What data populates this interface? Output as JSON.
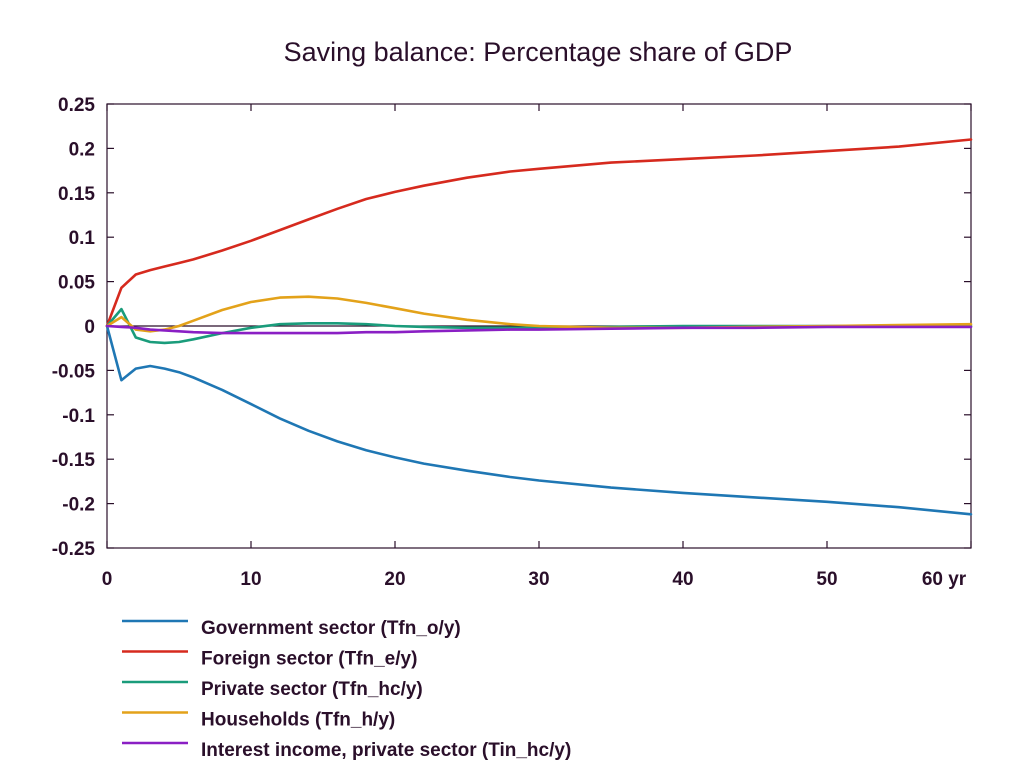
{
  "chart_data": {
    "type": "line",
    "title": "Saving balance: Percentage share of GDP",
    "x_unit": "yr",
    "xlim": [
      0,
      60
    ],
    "ylim": [
      -0.25,
      0.25
    ],
    "x_ticks": [
      0,
      10,
      20,
      30,
      40,
      50,
      60
    ],
    "x_tick_labels": [
      "0",
      "10",
      "20",
      "30",
      "40",
      "50",
      "60 yr"
    ],
    "y_ticks": [
      0.25,
      0.2,
      0.15,
      0.1,
      0.05,
      0,
      -0.05,
      -0.1,
      -0.15,
      -0.2,
      -0.25
    ],
    "y_tick_labels": [
      "0.25",
      "0.2",
      "0.15",
      "0.1",
      "0.05",
      "0",
      "-0.05",
      "-0.1",
      "-0.15",
      "-0.2",
      "-0.25"
    ],
    "grid": false,
    "legend_position": "bottom",
    "x": [
      0,
      1,
      2,
      3,
      4,
      5,
      6,
      8,
      10,
      12,
      14,
      16,
      18,
      20,
      22,
      25,
      28,
      30,
      35,
      40,
      45,
      50,
      55,
      60
    ],
    "series": [
      {
        "name": "Government sector (Tfn_o/y)",
        "color": "#1f77b4",
        "values": [
          0,
          -0.061,
          -0.048,
          -0.045,
          -0.048,
          -0.052,
          -0.058,
          -0.072,
          -0.088,
          -0.104,
          -0.118,
          -0.13,
          -0.14,
          -0.148,
          -0.155,
          -0.163,
          -0.17,
          -0.174,
          -0.182,
          -0.188,
          -0.193,
          -0.198,
          -0.204,
          -0.212
        ]
      },
      {
        "name": "Foreign sector (Tfn_e/y)",
        "color": "#d62a1e",
        "values": [
          0,
          0.043,
          0.058,
          0.063,
          0.067,
          0.071,
          0.075,
          0.085,
          0.096,
          0.108,
          0.12,
          0.132,
          0.143,
          0.151,
          0.158,
          0.167,
          0.174,
          0.177,
          0.184,
          0.188,
          0.192,
          0.197,
          0.202,
          0.21
        ]
      },
      {
        "name": "Private sector (Tfn_hc/y)",
        "color": "#1a9c7b",
        "values": [
          0,
          0.019,
          -0.013,
          -0.018,
          -0.019,
          -0.018,
          -0.015,
          -0.008,
          -0.002,
          0.002,
          0.003,
          0.003,
          0.002,
          0,
          -0.001,
          -0.002,
          -0.002,
          -0.002,
          -0.001,
          0,
          0,
          0,
          0,
          0
        ]
      },
      {
        "name": "Households (Tfn_h/y)",
        "color": "#e3a21a",
        "values": [
          0,
          0.01,
          -0.004,
          -0.006,
          -0.004,
          0,
          0.006,
          0.018,
          0.027,
          0.032,
          0.033,
          0.031,
          0.026,
          0.02,
          0.014,
          0.007,
          0.002,
          0,
          -0.002,
          -0.002,
          -0.001,
          0,
          0.001,
          0.002
        ]
      },
      {
        "name": "Interest income, private sector (Tin_hc/y)",
        "color": "#8a1fc4",
        "values": [
          0,
          -0.001,
          -0.002,
          -0.004,
          -0.005,
          -0.006,
          -0.007,
          -0.008,
          -0.008,
          -0.008,
          -0.008,
          -0.008,
          -0.007,
          -0.007,
          -0.006,
          -0.005,
          -0.004,
          -0.004,
          -0.003,
          -0.002,
          -0.002,
          -0.001,
          -0.001,
          -0.001
        ]
      }
    ]
  }
}
